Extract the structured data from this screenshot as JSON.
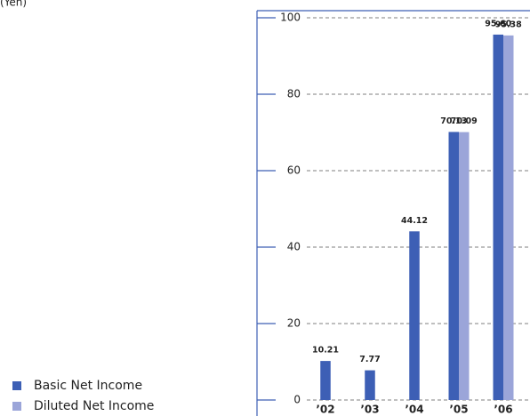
{
  "chart_data": {
    "type": "bar",
    "unit_label": "(Yen)",
    "categories": [
      "’02",
      "’03",
      "’04",
      "’05",
      "’06"
    ],
    "series": [
      {
        "name": "Basic Net Income",
        "color": "#3d5fb5",
        "values": [
          10.21,
          7.77,
          44.12,
          70.13,
          95.6
        ],
        "value_labels": [
          "10.21",
          "7.77",
          "44.12",
          "70.13",
          "95.60"
        ]
      },
      {
        "name": "Diluted Net Income",
        "color": "#9ba5d9",
        "values": [
          null,
          null,
          null,
          70.09,
          95.38
        ],
        "value_labels": [
          null,
          null,
          null,
          "70.09",
          "95.38"
        ]
      }
    ],
    "ylim": [
      0,
      100
    ],
    "yticks": [
      0,
      20,
      40,
      60,
      80,
      100
    ],
    "grid": true
  }
}
